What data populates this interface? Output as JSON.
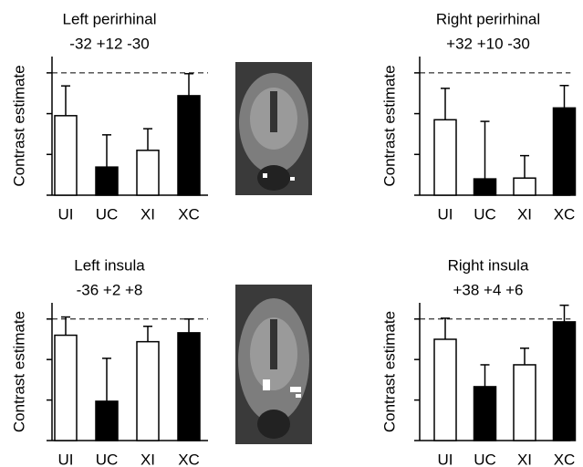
{
  "chart_data": [
    {
      "type": "bar",
      "title": "Left perirhinal",
      "subtitle": "-32 +12 -30",
      "ylabel": "Contrast estimate",
      "categories": [
        "UI",
        "UC",
        "XI",
        "XC"
      ],
      "values": [
        1.95,
        0.69,
        1.1,
        2.44
      ],
      "errors": [
        0.73,
        0.79,
        0.53,
        0.54
      ],
      "colors": [
        "#ffffff",
        "#000000",
        "#ffffff",
        "#000000"
      ],
      "ylim": [
        0,
        3.4
      ],
      "yticks": [
        0,
        1,
        2,
        3
      ],
      "ref_line": 3
    },
    {
      "type": "bar",
      "title": "Right perirhinal",
      "subtitle": "+32 +10 -30",
      "ylabel": "Contrast estimate",
      "categories": [
        "UI",
        "UC",
        "XI",
        "XC"
      ],
      "values": [
        1.85,
        0.4,
        0.42,
        2.14
      ],
      "errors": [
        0.77,
        1.41,
        0.55,
        0.55
      ],
      "colors": [
        "#ffffff",
        "#000000",
        "#ffffff",
        "#000000"
      ],
      "ylim": [
        0,
        3.4
      ],
      "yticks": [
        0,
        1,
        2,
        3
      ],
      "ref_line": 3
    },
    {
      "type": "bar",
      "title": "Left insula",
      "subtitle": "-36 +2 +8",
      "ylabel": "Contrast estimate",
      "categories": [
        "UI",
        "UC",
        "XI",
        "XC"
      ],
      "values": [
        2.6,
        0.97,
        2.44,
        2.66
      ],
      "errors": [
        0.45,
        1.06,
        0.38,
        0.34
      ],
      "colors": [
        "#ffffff",
        "#000000",
        "#ffffff",
        "#000000"
      ],
      "ylim": [
        0,
        3.4
      ],
      "yticks": [
        0,
        1,
        2,
        3
      ],
      "ref_line": 3
    },
    {
      "type": "bar",
      "title": "Right insula",
      "subtitle": "+38 +4 +6",
      "ylabel": "Contrast estimate",
      "categories": [
        "UI",
        "UC",
        "XI",
        "XC"
      ],
      "values": [
        2.5,
        1.33,
        1.87,
        2.93
      ],
      "errors": [
        0.52,
        0.54,
        0.41,
        0.41
      ],
      "colors": [
        "#ffffff",
        "#000000",
        "#ffffff",
        "#000000"
      ],
      "ylim": [
        0,
        3.4
      ],
      "yticks": [
        0,
        1,
        2,
        3
      ],
      "ref_line": 3
    }
  ]
}
